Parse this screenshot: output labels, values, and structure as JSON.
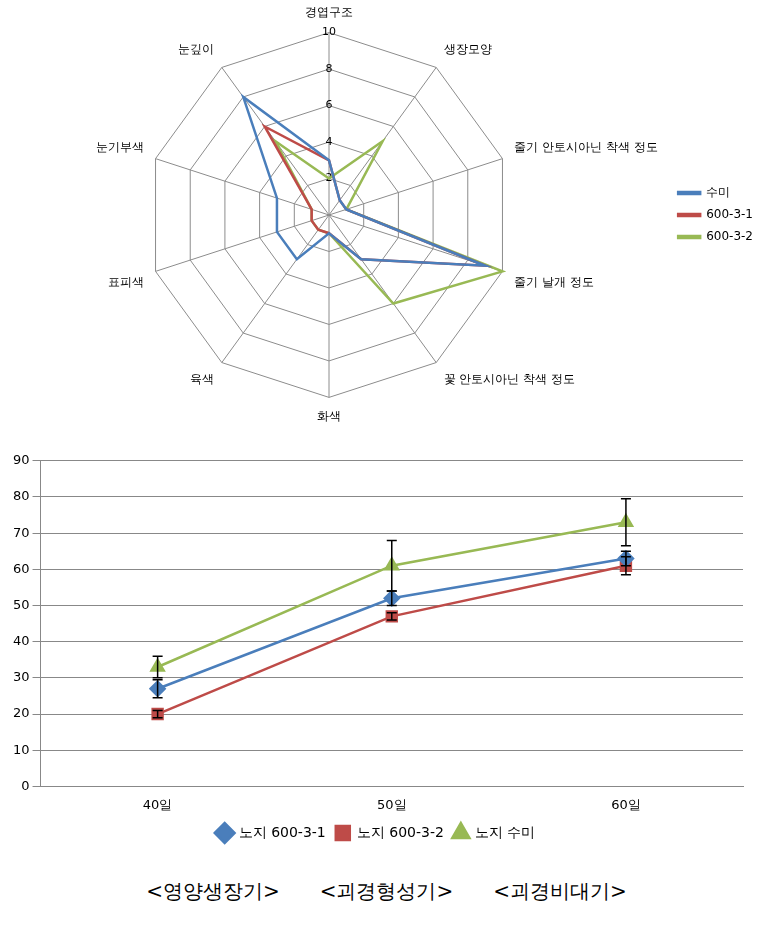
{
  "chart_data": [
    {
      "type": "radar",
      "categories": [
        "경엽구조",
        "생장모양",
        "줄기 안토시아닌 착색 정도",
        "줄기 날개 정도",
        "꽃 안토시아닌 착색 정도",
        "화색",
        "육색",
        "표피색",
        "눈기부색",
        "눈깊이"
      ],
      "series": [
        {
          "name": "수미",
          "color": "#4a7ebb",
          "values": [
            3,
            1,
            1,
            9,
            3,
            1,
            3,
            3,
            3,
            8
          ]
        },
        {
          "name": "600-3-1",
          "color": "#be4b48",
          "values": [
            3,
            1,
            1,
            9,
            3,
            1,
            1,
            1,
            1,
            6
          ]
        },
        {
          "name": "600-3-2",
          "color": "#98b954",
          "values": [
            2,
            5,
            1,
            10,
            6,
            1,
            1,
            1,
            1,
            5
          ]
        }
      ],
      "ylim": [
        0,
        10
      ],
      "yticks": [
        0,
        2,
        4,
        6,
        8,
        10
      ],
      "grid": true,
      "legend": "right"
    },
    {
      "type": "line",
      "categories": [
        "40일",
        "50일",
        "60일"
      ],
      "series": [
        {
          "name": "노지 600-3-1",
          "color": "#4a7ebb",
          "marker": "diamond",
          "values": [
            27,
            52,
            63
          ],
          "errors": [
            2.5,
            2,
            2
          ]
        },
        {
          "name": "노지 600-3-2",
          "color": "#be4b48",
          "marker": "square",
          "values": [
            20,
            47,
            61
          ],
          "errors": [
            1,
            1,
            2.5
          ]
        },
        {
          "name": "노지 수미",
          "color": "#98b954",
          "marker": "triangle",
          "values": [
            33,
            61,
            73
          ],
          "errors": [
            3,
            7,
            6.5
          ]
        }
      ],
      "ylim": [
        0,
        90
      ],
      "yticks": [
        0,
        10,
        20,
        30,
        40,
        50,
        60,
        70,
        80,
        90
      ],
      "grid": true,
      "legend": "bottom"
    }
  ],
  "caption": [
    "<영양생장기>",
    "<괴경형성기>",
    "<괴경비대기>"
  ]
}
